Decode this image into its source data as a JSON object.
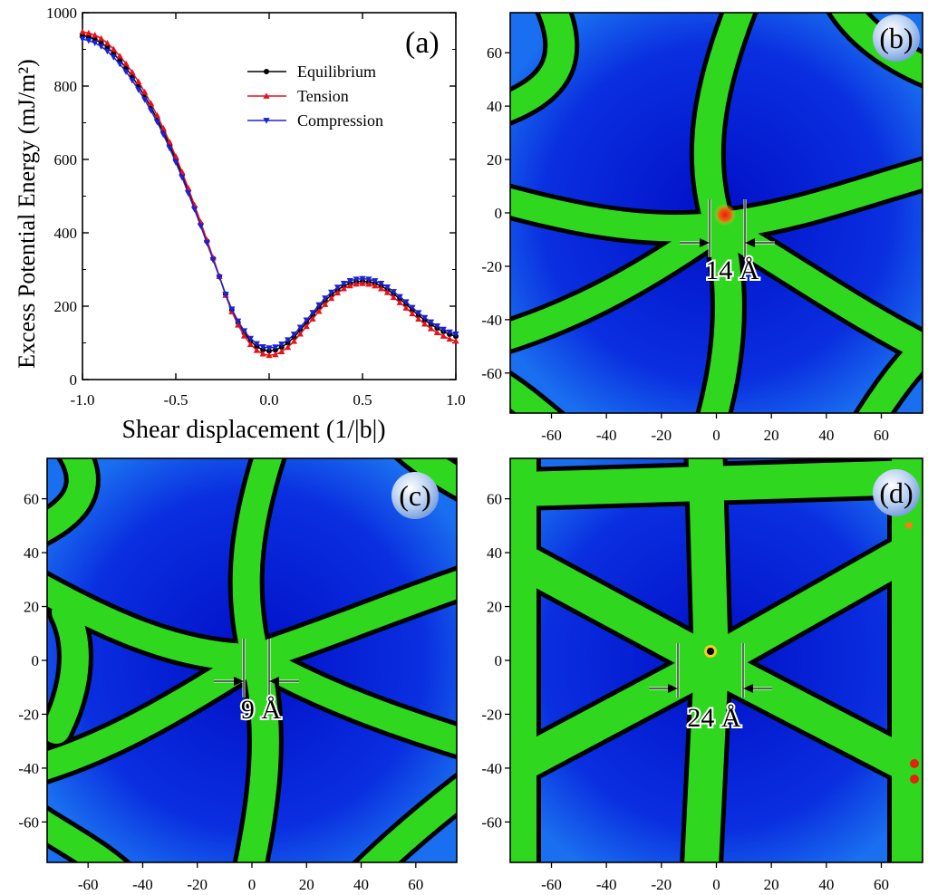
{
  "colors": {
    "equilibrium": "#000000",
    "tension": "#e8101a",
    "compression": "#1a22d6",
    "map_background": "#0414d8",
    "map_band": "#2fd81f",
    "map_band_edge": "#000000",
    "hotspot": "#e82010",
    "hotspot_ring": "#f0d020"
  },
  "chart_data": [
    {
      "panel_label": "(a)",
      "type": "line",
      "xlabel": "Shear displacement (1/|b|)",
      "ylabel": "Excess Potential Energy (mJ/m²)",
      "xlim": [
        -1.0,
        1.0
      ],
      "ylim": [
        0,
        1000
      ],
      "x_ticks": [
        -1.0,
        -0.5,
        0.0,
        0.5,
        1.0
      ],
      "x_tick_labels": [
        "-1.0",
        "-0.5",
        "0.0",
        "0.5",
        "1.0"
      ],
      "y_ticks": [
        0,
        200,
        400,
        600,
        800,
        1000
      ],
      "y_tick_labels": [
        "0",
        "200",
        "400",
        "600",
        "800",
        "1000"
      ],
      "legend_position": "top-right",
      "series": [
        {
          "name": "Equilibrium",
          "marker": "circle",
          "color_key": "equilibrium",
          "x": [
            -1.0,
            -0.9,
            -0.8,
            -0.7,
            -0.6,
            -0.5,
            -0.4,
            -0.3,
            -0.2,
            -0.1,
            0.0,
            0.1,
            0.2,
            0.3,
            0.4,
            0.5,
            0.6,
            0.7,
            0.8,
            0.9,
            1.0
          ],
          "y": [
            938,
            918,
            870,
            800,
            710,
            600,
            470,
            330,
            190,
            105,
            78,
            100,
            155,
            215,
            255,
            268,
            255,
            220,
            175,
            140,
            118
          ]
        },
        {
          "name": "Tension",
          "marker": "triangle-up",
          "color_key": "tension",
          "x": [
            -1.0,
            -0.9,
            -0.8,
            -0.7,
            -0.6,
            -0.5,
            -0.4,
            -0.3,
            -0.2,
            -0.1,
            0.0,
            0.1,
            0.2,
            0.3,
            0.4,
            0.5,
            0.6,
            0.7,
            0.8,
            0.9,
            1.0
          ],
          "y": [
            948,
            930,
            882,
            812,
            720,
            608,
            476,
            332,
            185,
            96,
            66,
            88,
            145,
            205,
            248,
            262,
            248,
            210,
            165,
            128,
            105
          ]
        },
        {
          "name": "Compression",
          "marker": "triangle-down",
          "color_key": "compression",
          "x": [
            -1.0,
            -0.9,
            -0.8,
            -0.7,
            -0.6,
            -0.5,
            -0.4,
            -0.3,
            -0.2,
            -0.1,
            0.0,
            0.1,
            0.2,
            0.3,
            0.4,
            0.5,
            0.6,
            0.7,
            0.8,
            0.9,
            1.0
          ],
          "y": [
            928,
            908,
            860,
            790,
            702,
            592,
            464,
            326,
            192,
            112,
            86,
            108,
            162,
            222,
            262,
            275,
            262,
            226,
            182,
            146,
            124
          ]
        }
      ]
    },
    {
      "panel_label": "(b)",
      "type": "heatmap",
      "xlim": [
        -75,
        75
      ],
      "ylim": [
        -75,
        75
      ],
      "x_tick_labels": [
        "-60",
        "-40",
        "-20",
        "0",
        "20",
        "40",
        "60"
      ],
      "y_tick_labels": [
        "60",
        "40",
        "20",
        "0",
        "-20",
        "-40",
        "-60"
      ],
      "annotation": "14 Å"
    },
    {
      "panel_label": "(c)",
      "type": "heatmap",
      "xlim": [
        -75,
        75
      ],
      "ylim": [
        -75,
        75
      ],
      "x_tick_labels": [
        "-60",
        "-40",
        "-20",
        "0",
        "20",
        "40",
        "60"
      ],
      "y_tick_labels": [
        "60",
        "40",
        "20",
        "0",
        "-20",
        "-40",
        "-60"
      ],
      "annotation": "9 Å"
    },
    {
      "panel_label": "(d)",
      "type": "heatmap",
      "xlim": [
        -75,
        75
      ],
      "ylim": [
        -75,
        75
      ],
      "x_tick_labels": [
        "-60",
        "-40",
        "-20",
        "0",
        "20",
        "40",
        "60"
      ],
      "y_tick_labels": [
        "60",
        "40",
        "20",
        "0",
        "-20",
        "-40",
        "-60"
      ],
      "annotation": "24 Å"
    }
  ]
}
